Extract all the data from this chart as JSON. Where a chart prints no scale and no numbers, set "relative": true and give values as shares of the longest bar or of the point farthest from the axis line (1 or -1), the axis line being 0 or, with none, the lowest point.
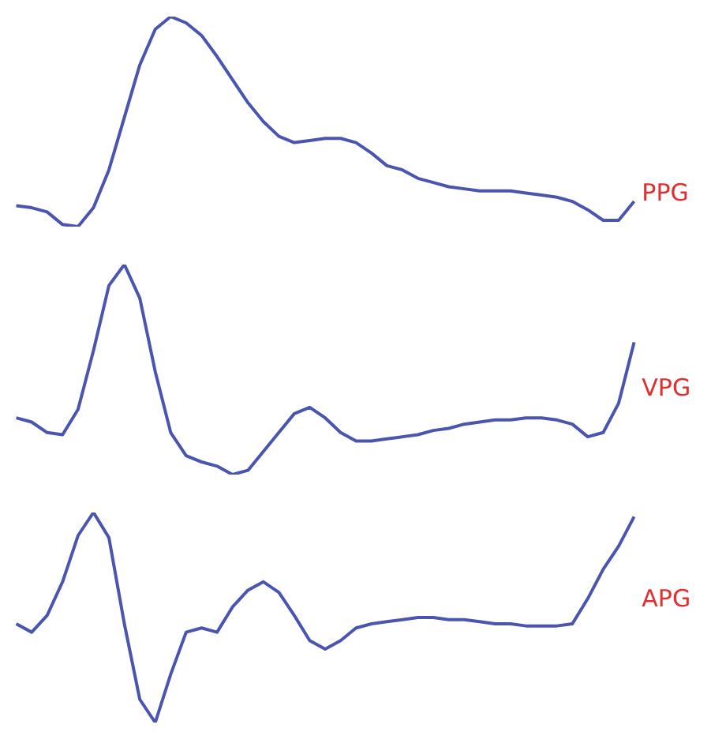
{
  "chart_data": [
    {
      "type": "line",
      "relative": true,
      "tick_labels": false,
      "grid": false,
      "legend": false,
      "categories": [
        null,
        null,
        null,
        null,
        null,
        null,
        null,
        null,
        null,
        null,
        null,
        null,
        null,
        null,
        null,
        null,
        null,
        null,
        null,
        null,
        null,
        null,
        null,
        null,
        null,
        null,
        null,
        null,
        null,
        null,
        null,
        null,
        null,
        null,
        null,
        null,
        null,
        null,
        null,
        null,
        null
      ],
      "series": [
        {
          "name": "PPG",
          "color": "#4a55b0",
          "values": [
            0.1,
            0.09,
            0.07,
            0.01,
            0,
            0.09,
            0.27,
            0.52,
            0.77,
            0.94,
            1.0,
            0.97,
            0.91,
            0.81,
            0.7,
            0.59,
            0.5,
            0.43,
            0.4,
            0.41,
            0.42,
            0.42,
            0.4,
            0.35,
            0.29,
            0.27,
            0.23,
            0.21,
            0.19,
            0.18,
            0.17,
            0.17,
            0.17,
            0.16,
            0.15,
            0.14,
            0.12,
            0.08,
            0.03,
            0.03,
            0.12
          ]
        }
      ]
    },
    {
      "type": "line",
      "relative": true,
      "tick_labels": false,
      "grid": false,
      "legend": false,
      "categories": [
        null,
        null,
        null,
        null,
        null,
        null,
        null,
        null,
        null,
        null,
        null,
        null,
        null,
        null,
        null,
        null,
        null,
        null,
        null,
        null,
        null,
        null,
        null,
        null,
        null,
        null,
        null,
        null,
        null,
        null,
        null,
        null,
        null,
        null,
        null,
        null,
        null,
        null,
        null,
        null,
        null
      ],
      "series": [
        {
          "name": "VPG",
          "color": "#4a55b0",
          "values": [
            0.27,
            0.25,
            0.2,
            0.19,
            0.31,
            0.59,
            0.9,
            1.0,
            0.84,
            0.49,
            0.2,
            0.09,
            0.06,
            0.04,
            0,
            0.02,
            0.11,
            0.2,
            0.29,
            0.32,
            0.27,
            0.2,
            0.16,
            0.16,
            0.17,
            0.18,
            0.19,
            0.21,
            0.22,
            0.24,
            0.25,
            0.26,
            0.26,
            0.27,
            0.27,
            0.26,
            0.24,
            0.18,
            0.2,
            0.34,
            0.63
          ]
        }
      ]
    },
    {
      "type": "line",
      "relative": true,
      "tick_labels": false,
      "grid": false,
      "legend": false,
      "categories": [
        null,
        null,
        null,
        null,
        null,
        null,
        null,
        null,
        null,
        null,
        null,
        null,
        null,
        null,
        null,
        null,
        null,
        null,
        null,
        null,
        null,
        null,
        null,
        null,
        null,
        null,
        null,
        null,
        null,
        null,
        null,
        null,
        null,
        null,
        null,
        null,
        null,
        null,
        null,
        null,
        null
      ],
      "series": [
        {
          "name": "APG",
          "color": "#4a55b0",
          "values": [
            0.47,
            0.43,
            0.51,
            0.67,
            0.89,
            1.0,
            0.88,
            0.47,
            0.11,
            0,
            0.23,
            0.43,
            0.45,
            0.43,
            0.55,
            0.63,
            0.67,
            0.62,
            0.51,
            0.39,
            0.35,
            0.39,
            0.45,
            0.47,
            0.48,
            0.49,
            0.5,
            0.5,
            0.49,
            0.49,
            0.48,
            0.47,
            0.47,
            0.46,
            0.46,
            0.46,
            0.47,
            0.59,
            0.73,
            0.84,
            0.98
          ]
        }
      ]
    }
  ]
}
